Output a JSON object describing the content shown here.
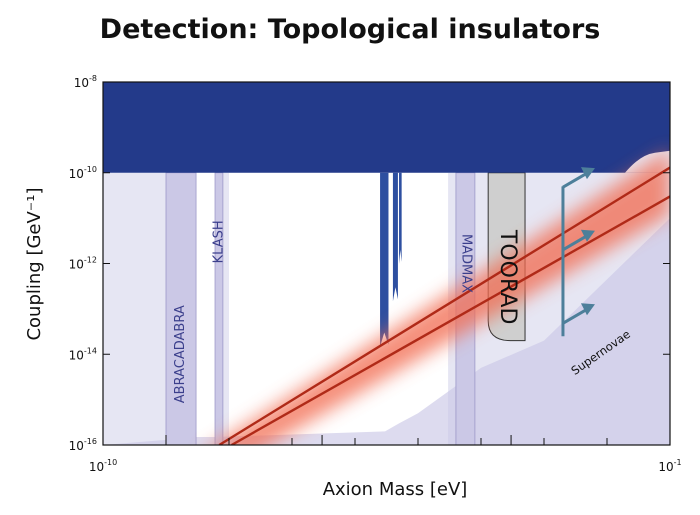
{
  "title": "Detection: Topological insulators",
  "chart_data": {
    "type": "area",
    "title": "Detection: Topological insulators",
    "xlabel": "Axion Mass [eV]",
    "ylabel": "Coupling [GeV⁻¹]",
    "xscale": "log",
    "yscale": "log",
    "xlim": [
      1e-10,
      0.1
    ],
    "ylim": [
      1e-16,
      1e-08
    ],
    "x_ticks": [
      {
        "base": "10",
        "exp": "-10"
      },
      {
        "base": "10",
        "exp": "-1"
      }
    ],
    "y_ticks": [
      {
        "base": "10",
        "exp": "-8",
        "value": 1e-08
      },
      {
        "base": "10",
        "exp": "-10",
        "value": 1e-10
      },
      {
        "base": "10",
        "exp": "-12",
        "value": 1e-12
      },
      {
        "base": "10",
        "exp": "-14",
        "value": 1e-14
      },
      {
        "base": "10",
        "exp": "-16",
        "value": 1e-16
      }
    ],
    "regions": [
      {
        "name": "ABRACADABRA",
        "x_range": [
          1e-09,
          3e-09
        ],
        "y_range": [
          1e-16,
          1e-10
        ]
      },
      {
        "name": "KLASH",
        "x_range": [
          6e-09,
          8e-09
        ],
        "y_range": [
          1e-16,
          1e-10
        ]
      },
      {
        "name": "MADMAX",
        "x_range": [
          4e-05,
          8e-05
        ],
        "y_range": [
          1e-16,
          1e-10
        ]
      },
      {
        "name": "TOORAD",
        "x_range": [
          0.00013,
          0.0005
        ],
        "y_range": [
          2e-14,
          1e-10
        ]
      }
    ],
    "annotations": [
      {
        "text": "Supernovae"
      }
    ],
    "series": [
      {
        "name": "Axion band upper line",
        "x": [
          7e-09,
          0.1
        ],
        "y": [
          1e-16,
          1.3e-10
        ]
      },
      {
        "name": "Axion band lower line",
        "x": [
          1.1e-08,
          0.1
        ],
        "y": [
          1e-16,
          3e-11
        ]
      }
    ],
    "colors": {
      "excluded_top": "#233a8a",
      "excluded_light": "#e6e6f3",
      "experiment_band": "#cbc8e6",
      "experiment_text": "#3b3f8c",
      "toorad_fill": "#cfcfcf",
      "axion_line": "#b02a18",
      "axion_glow": "#f26a4f",
      "supernova_arrow": "#4d7f9a"
    }
  }
}
